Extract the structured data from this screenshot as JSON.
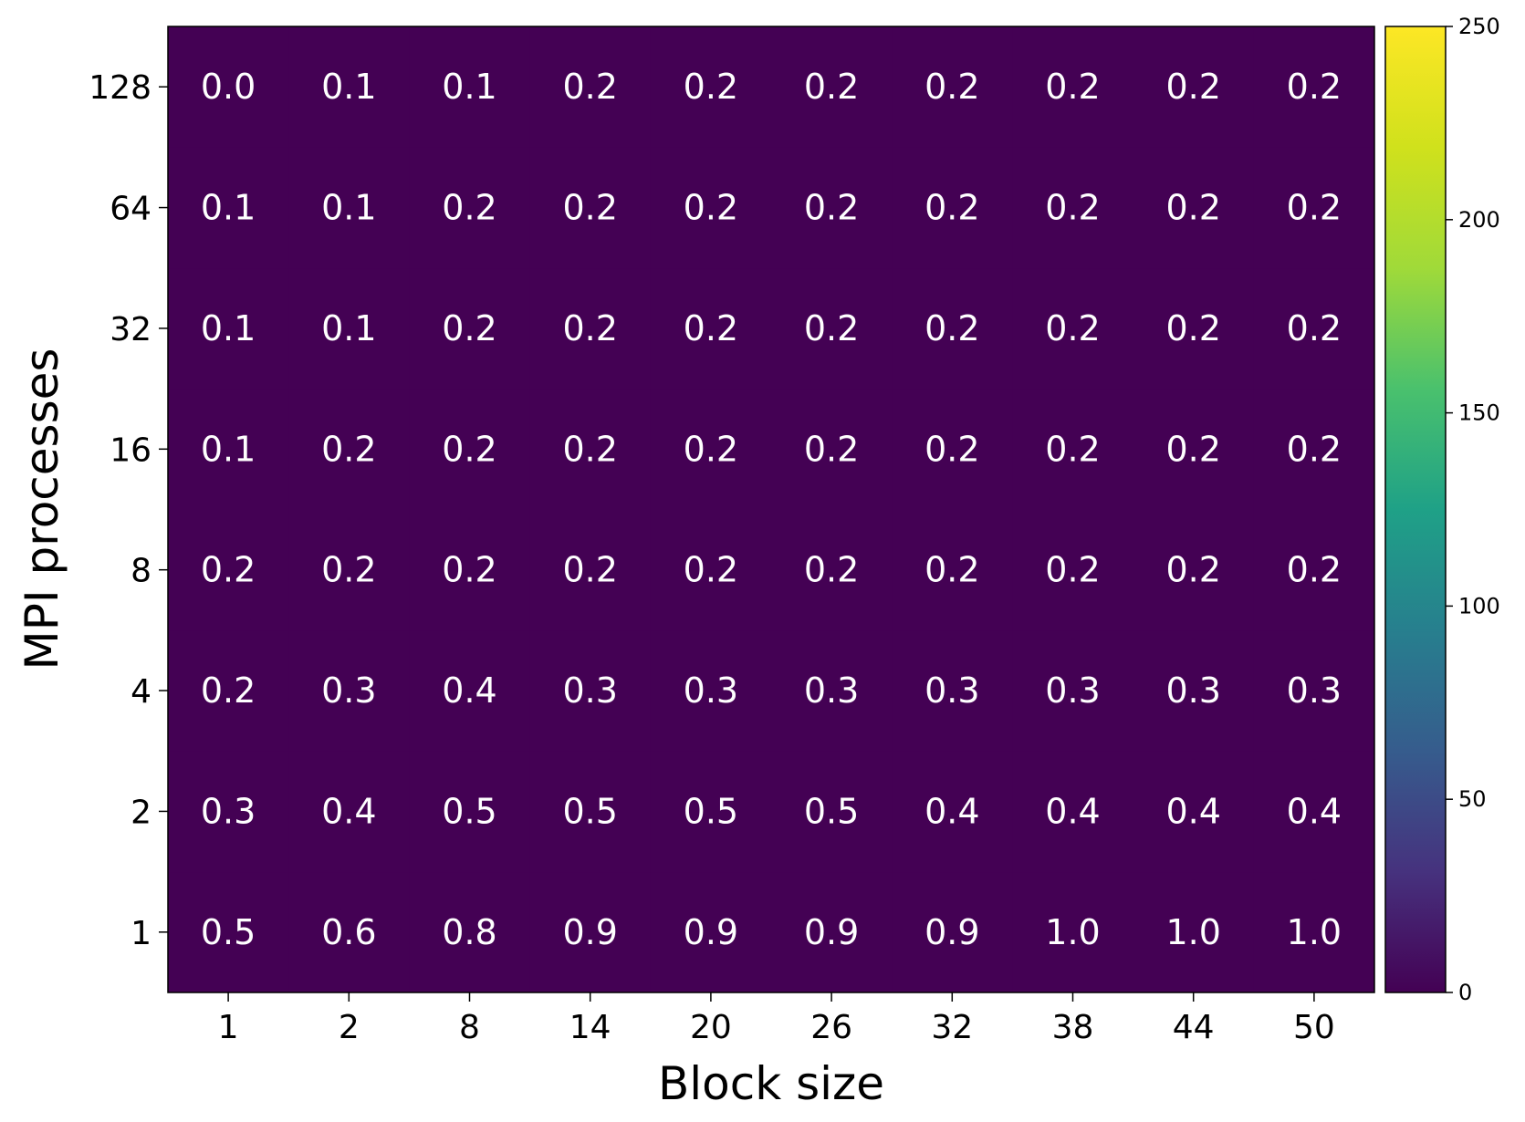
{
  "chart_data": {
    "type": "heatmap",
    "xlabel": "Block size",
    "ylabel": "MPI processes",
    "x_categories": [
      "1",
      "2",
      "8",
      "14",
      "20",
      "26",
      "32",
      "38",
      "44",
      "50"
    ],
    "y_categories": [
      "1",
      "2",
      "4",
      "8",
      "16",
      "32",
      "64",
      "128"
    ],
    "values": [
      [
        0.5,
        0.6,
        0.8,
        0.9,
        0.9,
        0.9,
        0.9,
        1.0,
        1.0,
        1.0
      ],
      [
        0.3,
        0.4,
        0.5,
        0.5,
        0.5,
        0.5,
        0.4,
        0.4,
        0.4,
        0.4
      ],
      [
        0.2,
        0.3,
        0.4,
        0.3,
        0.3,
        0.3,
        0.3,
        0.3,
        0.3,
        0.3
      ],
      [
        0.2,
        0.2,
        0.2,
        0.2,
        0.2,
        0.2,
        0.2,
        0.2,
        0.2,
        0.2
      ],
      [
        0.1,
        0.2,
        0.2,
        0.2,
        0.2,
        0.2,
        0.2,
        0.2,
        0.2,
        0.2
      ],
      [
        0.1,
        0.1,
        0.2,
        0.2,
        0.2,
        0.2,
        0.2,
        0.2,
        0.2,
        0.2
      ],
      [
        0.1,
        0.1,
        0.2,
        0.2,
        0.2,
        0.2,
        0.2,
        0.2,
        0.2,
        0.2
      ],
      [
        0.0,
        0.1,
        0.1,
        0.2,
        0.2,
        0.2,
        0.2,
        0.2,
        0.2,
        0.2
      ]
    ],
    "colorbar": {
      "range": [
        0,
        250
      ],
      "ticks": [
        "0",
        "50",
        "100",
        "150",
        "200",
        "250"
      ],
      "colormap": "viridis"
    },
    "colors": {
      "cell_fill": "#440154",
      "annotation_text": "#ffffff"
    }
  }
}
